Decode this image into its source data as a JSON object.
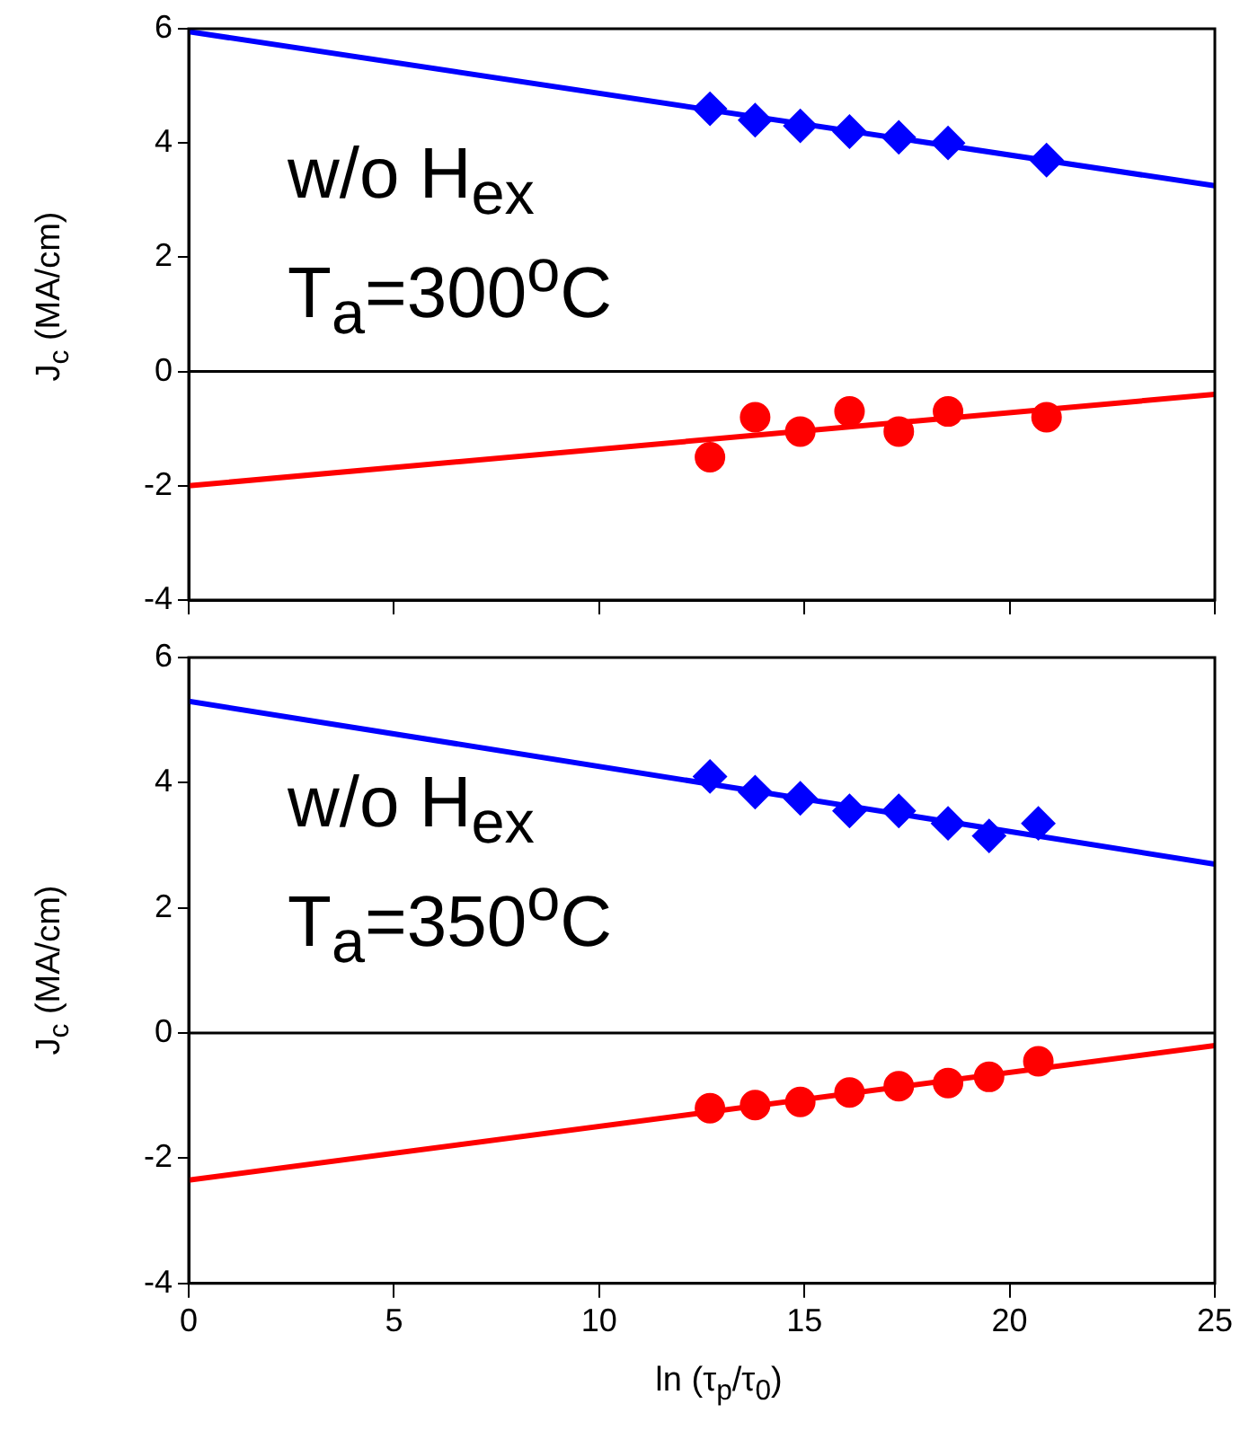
{
  "chart_data": [
    {
      "type": "scatter",
      "ylabel": "J$_{c}$ (MA/cm)",
      "annotations": [
        "w/o H$_{ex}$",
        "T$_{a}$=300$^{o}$C"
      ],
      "xlim": [
        0,
        25
      ],
      "xticks": [
        0,
        5,
        10,
        15,
        20,
        25
      ],
      "ylim": [
        -4,
        6
      ],
      "yticks": [
        -4,
        -2,
        0,
        2,
        4,
        6
      ],
      "tick_labels": "y",
      "grid": false,
      "legend": false,
      "ref_lines": [
        {
          "axis": "y",
          "value": 0,
          "color": "#000000"
        }
      ],
      "series": [
        {
          "color": "#0000ff",
          "marker": "diamond",
          "x": [
            12.7,
            13.8,
            14.9,
            16.1,
            17.3,
            18.5,
            20.9
          ],
          "values": [
            4.6,
            4.4,
            4.3,
            4.2,
            4.1,
            4.0,
            3.7
          ]
        },
        {
          "color": "#ff0000",
          "marker": "circle",
          "x": [
            12.7,
            13.8,
            14.9,
            16.1,
            17.3,
            18.5,
            20.9
          ],
          "values": [
            -1.5,
            -0.8,
            -1.05,
            -0.7,
            -1.05,
            -0.7,
            -0.8
          ]
        },
        {
          "type": "line",
          "color": "#0000ff",
          "marker": "none",
          "line_style": "solid",
          "x": [
            0,
            25
          ],
          "values": [
            5.95,
            3.25
          ]
        },
        {
          "type": "line",
          "color": "#ff0000",
          "marker": "none",
          "line_style": "solid",
          "x": [
            0,
            25
          ],
          "values": [
            -2.0,
            -0.4
          ]
        }
      ]
    },
    {
      "type": "scatter",
      "ylabel": "J$_{c}$ (MA/cm)",
      "xlabel": "ln (τ$_{p}$/τ$_{0}$)",
      "annotations": [
        "w/o H$_{ex}$",
        "T$_{a}$=350$^{o}$C"
      ],
      "xlim": [
        0,
        25
      ],
      "xticks": [
        0,
        5,
        10,
        15,
        20,
        25
      ],
      "ylim": [
        -4,
        6
      ],
      "yticks": [
        -4,
        -2,
        0,
        2,
        4,
        6
      ],
      "grid": false,
      "legend": false,
      "ref_lines": [
        {
          "axis": "y",
          "value": 0,
          "color": "#000000"
        }
      ],
      "series": [
        {
          "color": "#0000ff",
          "marker": "diamond",
          "x": [
            12.7,
            13.8,
            14.9,
            16.1,
            17.3,
            18.5,
            19.5,
            20.7
          ],
          "values": [
            4.1,
            3.85,
            3.75,
            3.55,
            3.55,
            3.35,
            3.15,
            3.35
          ]
        },
        {
          "color": "#ff0000",
          "marker": "circle",
          "x": [
            12.7,
            13.8,
            14.9,
            16.1,
            17.3,
            18.5,
            19.5,
            20.7
          ],
          "values": [
            -1.2,
            -1.15,
            -1.1,
            -0.95,
            -0.85,
            -0.8,
            -0.7,
            -0.45
          ]
        },
        {
          "type": "line",
          "color": "#0000ff",
          "marker": "none",
          "line_style": "solid",
          "x": [
            0,
            25
          ],
          "values": [
            5.3,
            2.7
          ]
        },
        {
          "type": "line",
          "color": "#ff0000",
          "marker": "none",
          "line_style": "solid",
          "x": [
            0,
            25
          ],
          "values": [
            -2.35,
            -0.2
          ]
        }
      ]
    }
  ]
}
